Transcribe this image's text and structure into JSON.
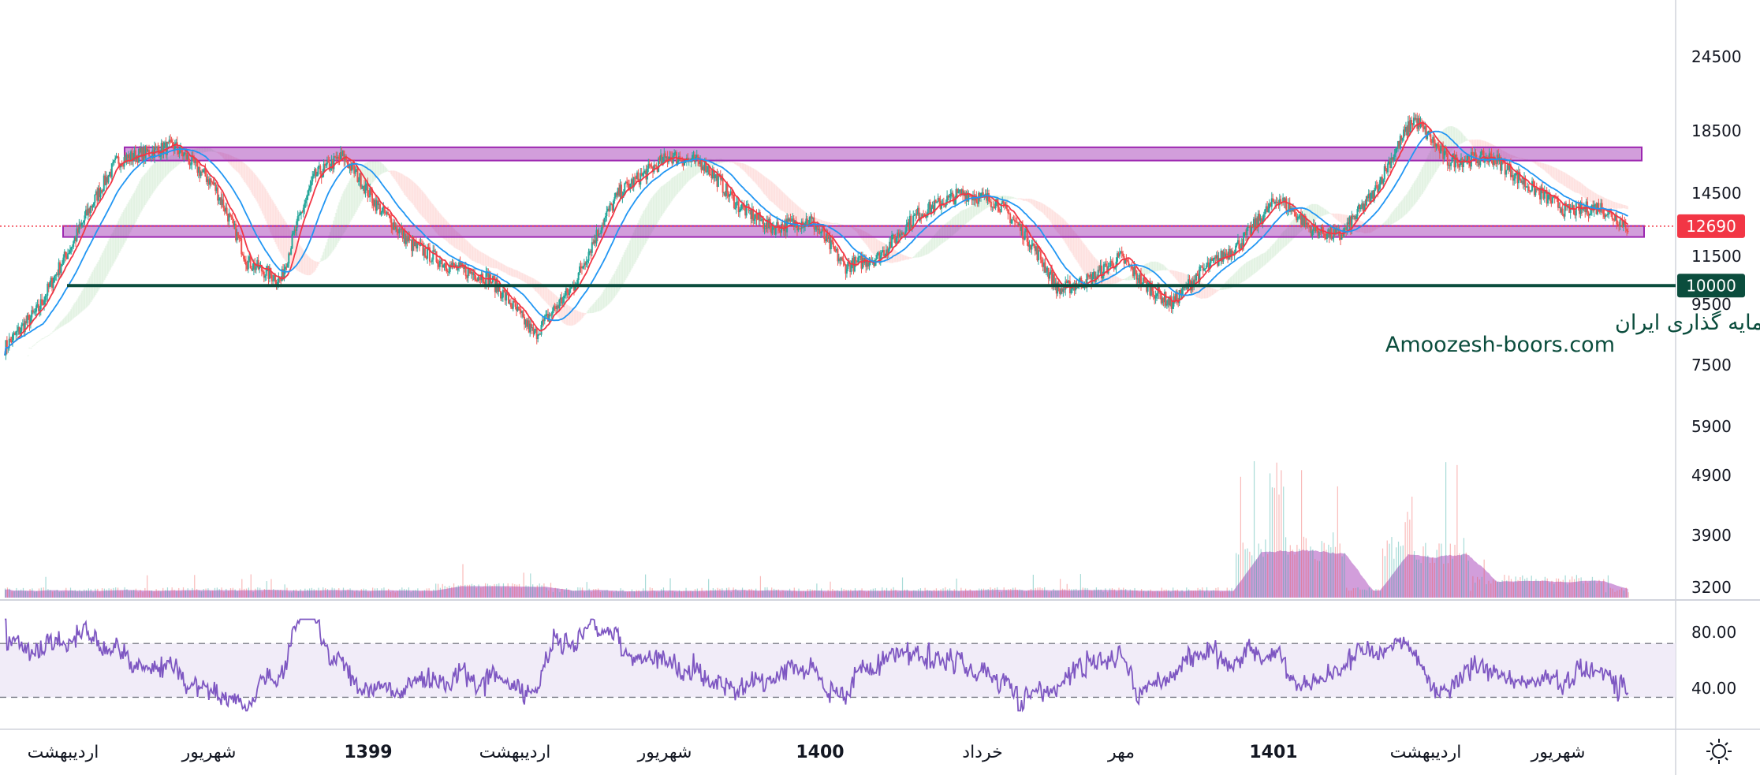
{
  "chart_data": [
    {
      "type": "candlestick",
      "price_axis_ticks": [
        "24500",
        "18500",
        "14500",
        "11500",
        "9500",
        "7500",
        "5900",
        "4900",
        "3900",
        "3200"
      ],
      "time_axis_labels": [
        {
          "label": "اردیبهشت",
          "bold": false
        },
        {
          "label": "شهریور",
          "bold": false
        },
        {
          "label": "1399",
          "bold": true
        },
        {
          "label": "اردیبهشت",
          "bold": false
        },
        {
          "label": "شهریور",
          "bold": false
        },
        {
          "label": "1400",
          "bold": true
        },
        {
          "label": "خرداد",
          "bold": false
        },
        {
          "label": "مهر",
          "bold": false
        },
        {
          "label": "1401",
          "bold": true
        },
        {
          "label": "اردیبهشت",
          "bold": false
        },
        {
          "label": "شهریور",
          "bold": false
        }
      ],
      "price_path": [
        [
          0,
          7800
        ],
        [
          30,
          9100
        ],
        [
          60,
          11800
        ],
        [
          100,
          16500
        ],
        [
          150,
          17500
        ],
        [
          185,
          15000
        ],
        [
          215,
          11000
        ],
        [
          245,
          10200
        ],
        [
          275,
          15500
        ],
        [
          300,
          16800
        ],
        [
          330,
          13800
        ],
        [
          360,
          11800
        ],
        [
          395,
          10800
        ],
        [
          430,
          10300
        ],
        [
          470,
          8200
        ],
        [
          505,
          10000
        ],
        [
          545,
          14500
        ],
        [
          590,
          16800
        ],
        [
          620,
          16300
        ],
        [
          650,
          13800
        ],
        [
          680,
          12600
        ],
        [
          715,
          13000
        ],
        [
          745,
          10800
        ],
        [
          775,
          11200
        ],
        [
          810,
          13300
        ],
        [
          850,
          14500
        ],
        [
          880,
          14000
        ],
        [
          905,
          12300
        ],
        [
          935,
          9800
        ],
        [
          965,
          10300
        ],
        [
          990,
          11200
        ],
        [
          1010,
          10100
        ],
        [
          1035,
          9300
        ],
        [
          1060,
          10500
        ],
        [
          1095,
          11800
        ],
        [
          1130,
          14200
        ],
        [
          1160,
          12500
        ],
        [
          1185,
          12200
        ],
        [
          1215,
          14500
        ],
        [
          1250,
          19500
        ],
        [
          1280,
          16500
        ],
        [
          1320,
          16700
        ],
        [
          1350,
          15000
        ],
        [
          1385,
          13500
        ],
        [
          1415,
          13700
        ],
        [
          1440,
          12700
        ]
      ],
      "last_price": "12690",
      "current_price_color": "#f23645",
      "support_line": {
        "value": 10000,
        "label": "10000",
        "color": "#0b4d3d"
      },
      "zones": [
        {
          "from": 16500,
          "to": 17400,
          "color": "#9c27b0"
        },
        {
          "from": 12150,
          "to": 12700,
          "color": "#9c27b0"
        }
      ],
      "moving_averages": [
        {
          "color": "#f23645"
        },
        {
          "color": "#2196f3"
        }
      ],
      "ichimoku_cloud": {
        "bullish_color": "#4caf50",
        "bearish_color": "#f44336"
      },
      "volume_color": "#9c27b0",
      "watermark": {
        "line1": "انجمن خبرگان سرمایه گذاری ایران",
        "line2": "Amoozesh-boors.com"
      }
    },
    {
      "type": "line",
      "indicator": "RSI",
      "y_ticks": [
        "80.00",
        "40.00"
      ],
      "upper_band": 70,
      "lower_band": 30,
      "line_color": "#7e57c2",
      "band_fill": "#ede7f6"
    }
  ],
  "toolbar": {
    "settings_icon": "sun-icon"
  }
}
